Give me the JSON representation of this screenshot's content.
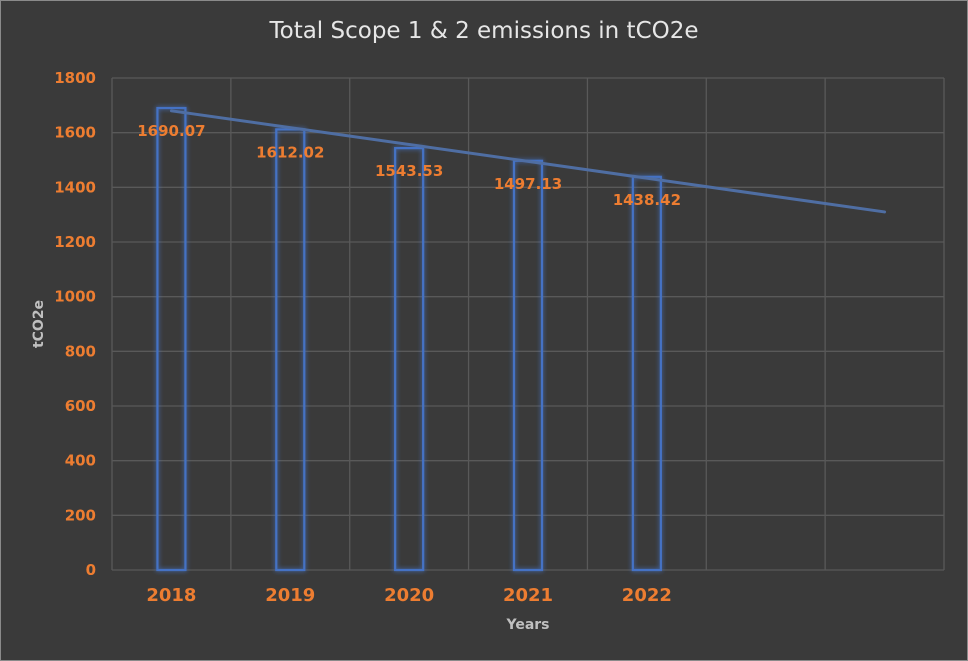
{
  "chart_data": {
    "type": "bar",
    "title": "Total Scope 1 & 2 emissions in tCO2e",
    "xlabel": "Years",
    "ylabel": "tCO2e",
    "categories": [
      "2018",
      "2019",
      "2020",
      "2021",
      "2022"
    ],
    "values": [
      1690.07,
      1612.02,
      1543.53,
      1497.13,
      1438.42
    ],
    "data_labels": [
      "1690.07",
      "1612.02",
      "1543.53",
      "1497.13",
      "1438.42"
    ],
    "ylim": [
      0,
      1800
    ],
    "yticks": [
      "0",
      "200",
      "400",
      "600",
      "800",
      "1000",
      "1200",
      "1400",
      "1600",
      "1800"
    ],
    "grid": true,
    "trendline": {
      "type": "linear",
      "start": 1680,
      "end": 1310
    },
    "colors": {
      "bar_outline": "#4472c4",
      "labels": "#ed7d31",
      "grid": "#595959",
      "background": "#3a3a3a",
      "trendline": "#4f6ea3"
    }
  }
}
